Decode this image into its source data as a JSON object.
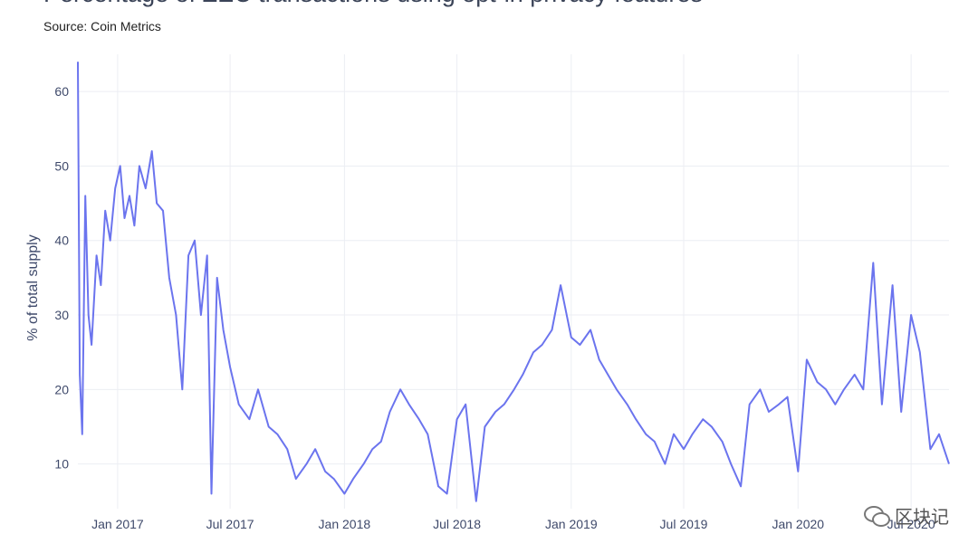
{
  "title": "Percentage of ZEC transactions using opt-in privacy features",
  "subtitle": "Source: Coin Metrics",
  "watermark": "区块记",
  "chart_data": {
    "type": "line",
    "title": "Percentage of ZEC transactions using opt-in privacy features",
    "subtitle": "Source: Coin Metrics",
    "xlabel": "",
    "ylabel": "% of total supply",
    "ylim": [
      4,
      65
    ],
    "yticks": [
      10,
      20,
      30,
      40,
      50,
      60
    ],
    "xlim": [
      "2016-10-29",
      "2020-08-31"
    ],
    "xticks": [
      {
        "date": "2017-01-01",
        "label": "Jan 2017"
      },
      {
        "date": "2017-07-01",
        "label": "Jul 2017"
      },
      {
        "date": "2018-01-01",
        "label": "Jan 2018"
      },
      {
        "date": "2018-07-01",
        "label": "Jul 2018"
      },
      {
        "date": "2019-01-01",
        "label": "Jan 2019"
      },
      {
        "date": "2019-07-01",
        "label": "Jul 2019"
      },
      {
        "date": "2020-01-01",
        "label": "Jan 2020"
      },
      {
        "date": "2020-07-01",
        "label": "Jul 2020"
      }
    ],
    "grid": true,
    "line_color": "#6b74ee",
    "series": [
      {
        "x": [
          "2016-10-29",
          "2016-11-01",
          "2016-11-05",
          "2016-11-10",
          "2016-11-15",
          "2016-11-20",
          "2016-11-28",
          "2016-12-05",
          "2016-12-12",
          "2016-12-20",
          "2016-12-28",
          "2017-01-05",
          "2017-01-12",
          "2017-01-20",
          "2017-01-28",
          "2017-02-05",
          "2017-02-15",
          "2017-02-25",
          "2017-03-05",
          "2017-03-15",
          "2017-03-25",
          "2017-04-05",
          "2017-04-15",
          "2017-04-25",
          "2017-05-05",
          "2017-05-15",
          "2017-05-25",
          "2017-06-01",
          "2017-06-10",
          "2017-06-20",
          "2017-07-01",
          "2017-07-15",
          "2017-08-01",
          "2017-08-15",
          "2017-09-01",
          "2017-09-15",
          "2017-10-01",
          "2017-10-15",
          "2017-11-01",
          "2017-11-15",
          "2017-12-01",
          "2017-12-15",
          "2018-01-01",
          "2018-01-15",
          "2018-02-01",
          "2018-02-15",
          "2018-03-01",
          "2018-03-15",
          "2018-04-01",
          "2018-04-15",
          "2018-05-01",
          "2018-05-15",
          "2018-06-01",
          "2018-06-15",
          "2018-07-01",
          "2018-07-15",
          "2018-08-01",
          "2018-08-15",
          "2018-09-01",
          "2018-09-15",
          "2018-10-01",
          "2018-10-15",
          "2018-11-01",
          "2018-11-15",
          "2018-12-01",
          "2018-12-15",
          "2019-01-01",
          "2019-01-15",
          "2019-02-01",
          "2019-02-15",
          "2019-03-01",
          "2019-03-15",
          "2019-04-01",
          "2019-04-15",
          "2019-05-01",
          "2019-05-15",
          "2019-06-01",
          "2019-06-15",
          "2019-07-01",
          "2019-07-15",
          "2019-08-01",
          "2019-08-15",
          "2019-09-01",
          "2019-09-15",
          "2019-10-01",
          "2019-10-15",
          "2019-11-01",
          "2019-11-15",
          "2019-12-01",
          "2019-12-15",
          "2020-01-01",
          "2020-01-15",
          "2020-02-01",
          "2020-02-15",
          "2020-03-01",
          "2020-03-15",
          "2020-04-01",
          "2020-04-15",
          "2020-05-01",
          "2020-05-15",
          "2020-06-01",
          "2020-06-15",
          "2020-07-01",
          "2020-07-15",
          "2020-08-01",
          "2020-08-15",
          "2020-08-31"
        ],
        "y": [
          64,
          22,
          14,
          46,
          30,
          26,
          38,
          34,
          44,
          40,
          47,
          50,
          43,
          46,
          42,
          50,
          47,
          52,
          45,
          44,
          35,
          30,
          20,
          38,
          40,
          30,
          38,
          6,
          35,
          28,
          23,
          18,
          16,
          20,
          15,
          14,
          12,
          8,
          10,
          12,
          9,
          8,
          6,
          8,
          10,
          12,
          13,
          17,
          20,
          18,
          16,
          14,
          7,
          6,
          16,
          18,
          5,
          15,
          17,
          18,
          20,
          22,
          25,
          26,
          28,
          34,
          27,
          26,
          28,
          24,
          22,
          20,
          18,
          16,
          14,
          13,
          10,
          14,
          12,
          14,
          16,
          15,
          13,
          10,
          7,
          18,
          20,
          17,
          18,
          19,
          9,
          24,
          21,
          20,
          18,
          20,
          22,
          20,
          37,
          18,
          34,
          17,
          30,
          25,
          12,
          14,
          10
        ]
      }
    ]
  }
}
